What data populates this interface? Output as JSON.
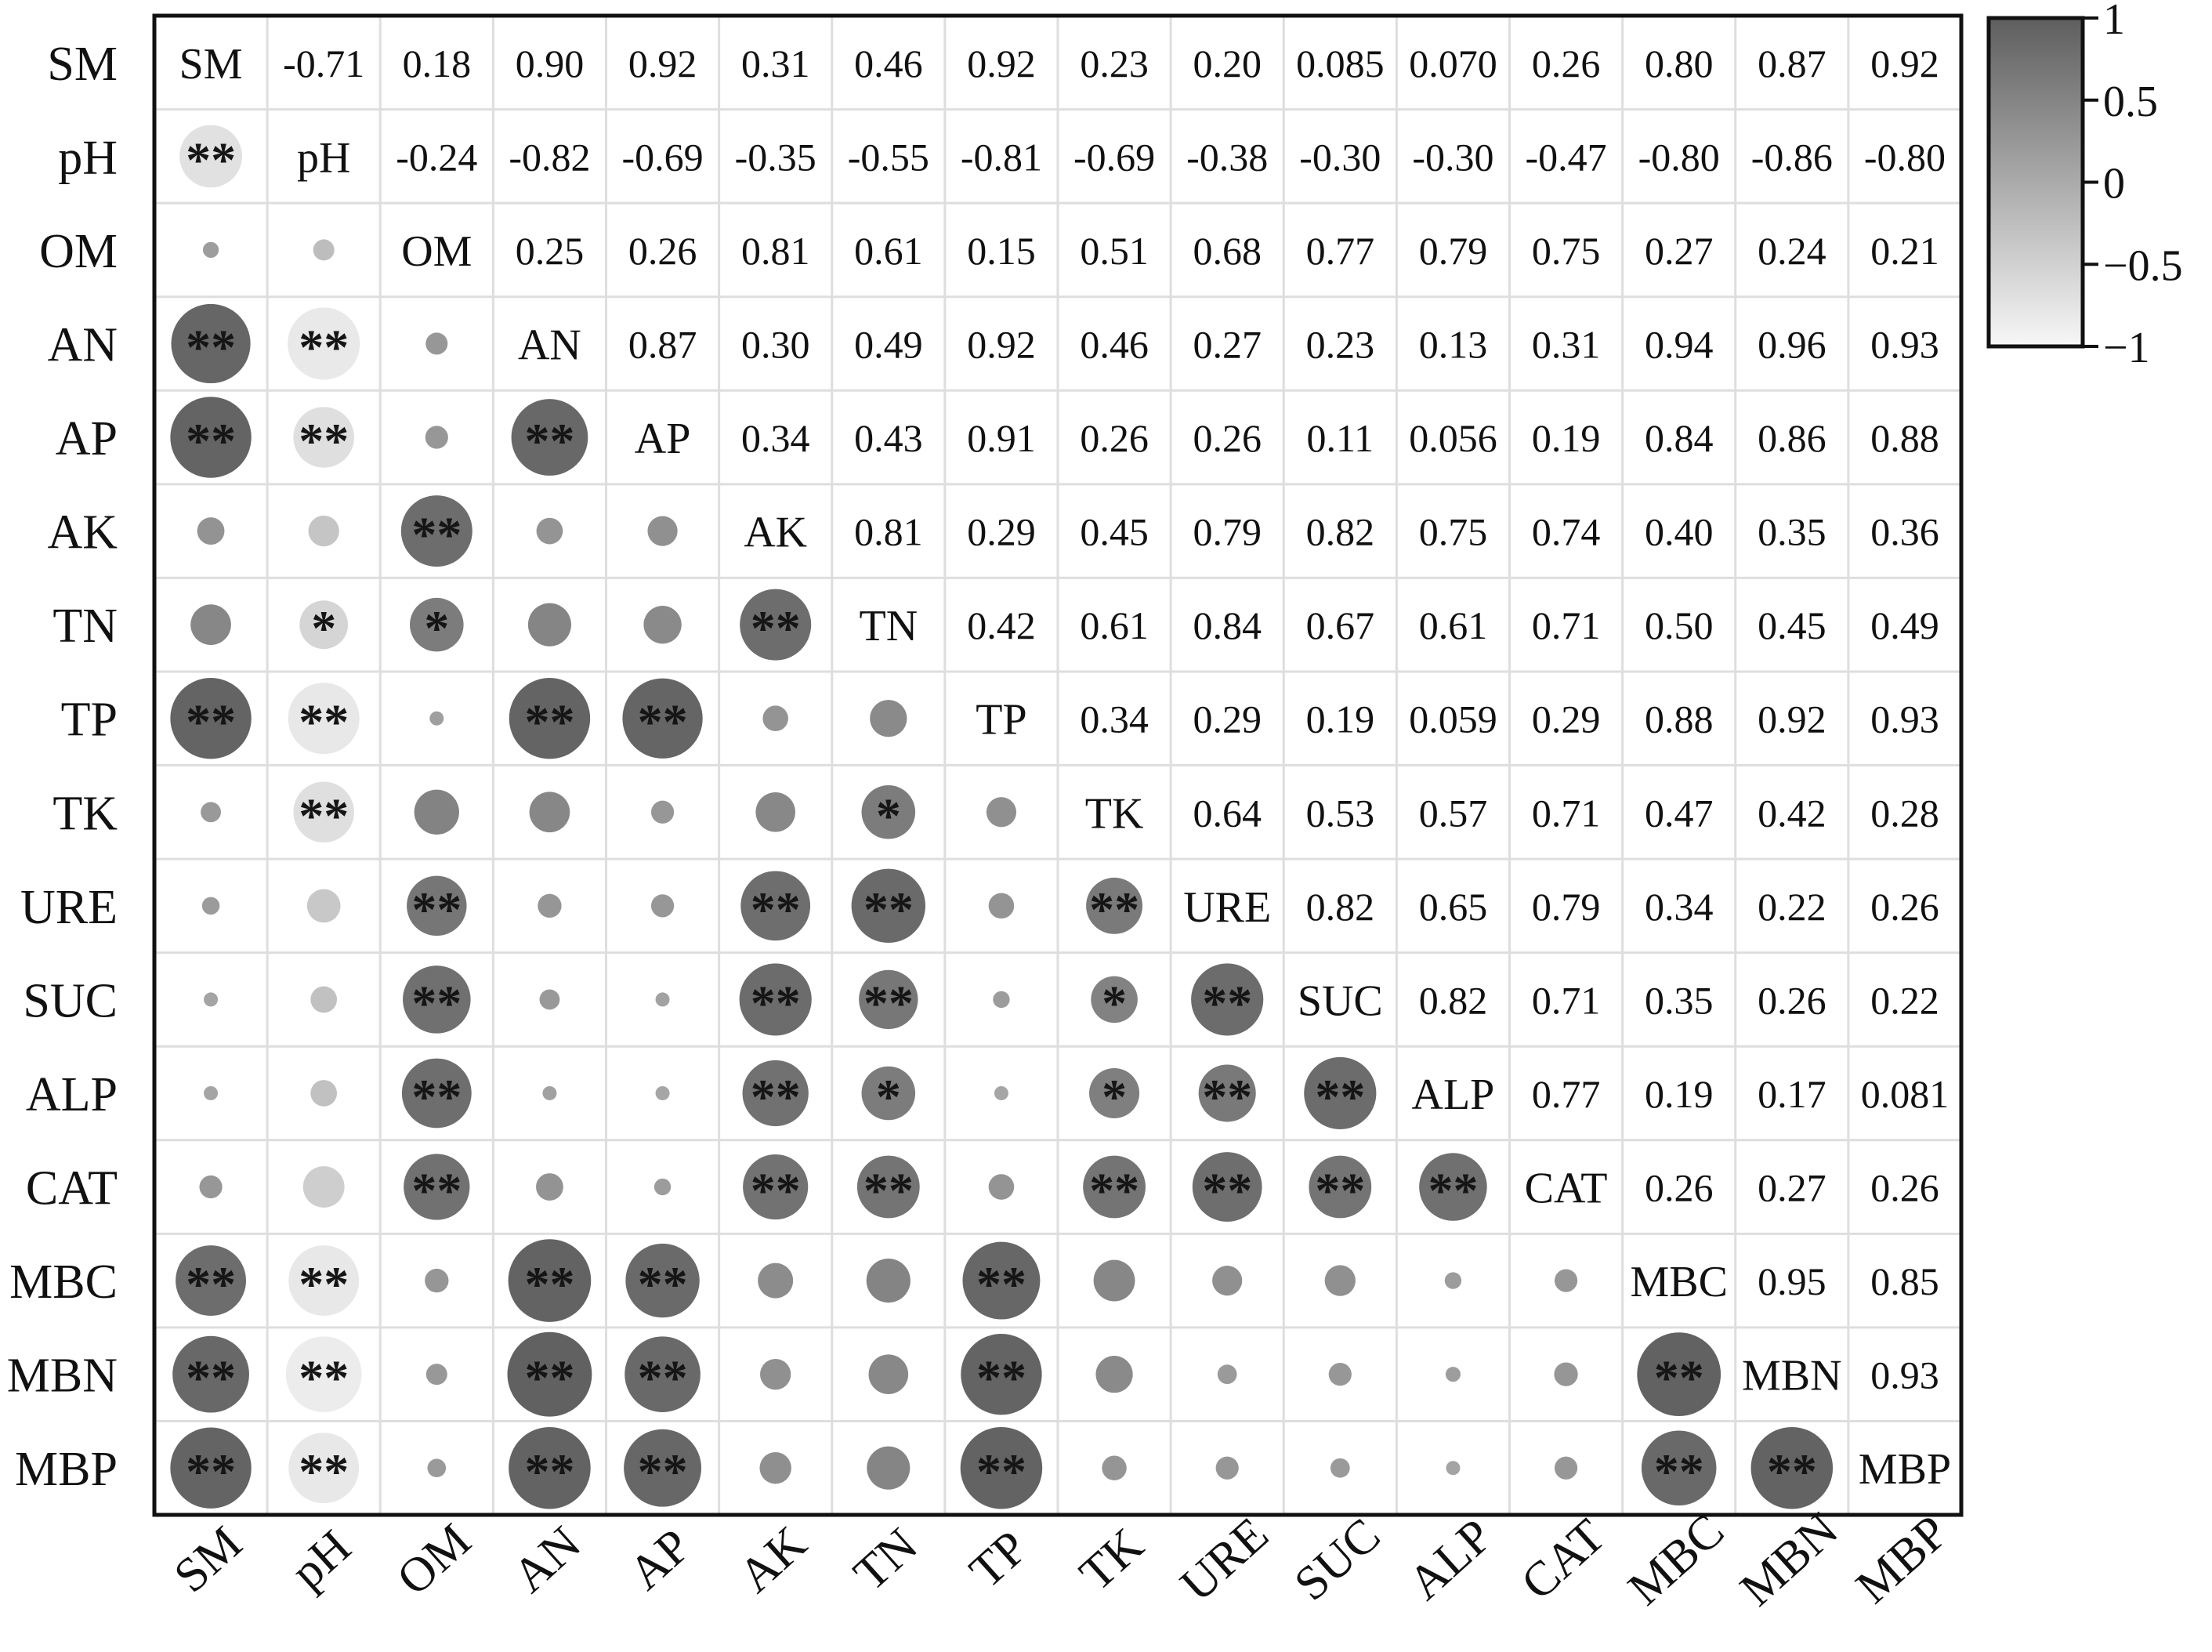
{
  "chart_data": {
    "type": "heatmap",
    "variables": [
      "SM",
      "pH",
      "OM",
      "AN",
      "AP",
      "AK",
      "TN",
      "TP",
      "TK",
      "URE",
      "SUC",
      "ALP",
      "CAT",
      "MBC",
      "MBN",
      "MBP"
    ],
    "upper_labels": [
      [
        "SM",
        "-0.71",
        "0.18",
        "0.90",
        "0.92",
        "0.31",
        "0.46",
        "0.92",
        "0.23",
        "0.20",
        "0.085",
        "0.070",
        "0.26",
        "0.80",
        "0.87",
        "0.92"
      ],
      [
        "",
        "pH",
        "-0.24",
        "-0.82",
        "-0.69",
        "-0.35",
        "-0.55",
        "-0.81",
        "-0.69",
        "-0.38",
        "-0.30",
        "-0.30",
        "-0.47",
        "-0.80",
        "-0.86",
        "-0.80"
      ],
      [
        "",
        "",
        "OM",
        "0.25",
        "0.26",
        "0.81",
        "0.61",
        "0.15",
        "0.51",
        "0.68",
        "0.77",
        "0.79",
        "0.75",
        "0.27",
        "0.24",
        "0.21"
      ],
      [
        "",
        "",
        "",
        "AN",
        "0.87",
        "0.30",
        "0.49",
        "0.92",
        "0.46",
        "0.27",
        "0.23",
        "0.13",
        "0.31",
        "0.94",
        "0.96",
        "0.93"
      ],
      [
        "",
        "",
        "",
        "",
        "AP",
        "0.34",
        "0.43",
        "0.91",
        "0.26",
        "0.26",
        "0.11",
        "0.056",
        "0.19",
        "0.84",
        "0.86",
        "0.88"
      ],
      [
        "",
        "",
        "",
        "",
        "",
        "AK",
        "0.81",
        "0.29",
        "0.45",
        "0.79",
        "0.82",
        "0.75",
        "0.74",
        "0.40",
        "0.35",
        "0.36"
      ],
      [
        "",
        "",
        "",
        "",
        "",
        "",
        "TN",
        "0.42",
        "0.61",
        "0.84",
        "0.67",
        "0.61",
        "0.71",
        "0.50",
        "0.45",
        "0.49"
      ],
      [
        "",
        "",
        "",
        "",
        "",
        "",
        "",
        "TP",
        "0.34",
        "0.29",
        "0.19",
        "0.059",
        "0.29",
        "0.88",
        "0.92",
        "0.93"
      ],
      [
        "",
        "",
        "",
        "",
        "",
        "",
        "",
        "",
        "TK",
        "0.64",
        "0.53",
        "0.57",
        "0.71",
        "0.47",
        "0.42",
        "0.28"
      ],
      [
        "",
        "",
        "",
        "",
        "",
        "",
        "",
        "",
        "",
        "URE",
        "0.82",
        "0.65",
        "0.79",
        "0.34",
        "0.22",
        "0.26"
      ],
      [
        "",
        "",
        "",
        "",
        "",
        "",
        "",
        "",
        "",
        "",
        "SUC",
        "0.82",
        "0.71",
        "0.35",
        "0.26",
        "0.22"
      ],
      [
        "",
        "",
        "",
        "",
        "",
        "",
        "",
        "",
        "",
        "",
        "",
        "ALP",
        "0.77",
        "0.19",
        "0.17",
        "0.081"
      ],
      [
        "",
        "",
        "",
        "",
        "",
        "",
        "",
        "",
        "",
        "",
        "",
        "",
        "CAT",
        "0.26",
        "0.27",
        "0.26"
      ],
      [
        "",
        "",
        "",
        "",
        "",
        "",
        "",
        "",
        "",
        "",
        "",
        "",
        "",
        "MBC",
        "0.95",
        "0.85"
      ],
      [
        "",
        "",
        "",
        "",
        "",
        "",
        "",
        "",
        "",
        "",
        "",
        "",
        "",
        "",
        "MBN",
        "0.93"
      ],
      [
        "",
        "",
        "",
        "",
        "",
        "",
        "",
        "",
        "",
        "",
        "",
        "",
        "",
        "",
        "",
        "MBP"
      ]
    ],
    "significance": [
      [
        "",
        "",
        "",
        "",
        "",
        "",
        "",
        "",
        "",
        "",
        "",
        "",
        "",
        "",
        "",
        ""
      ],
      [
        "**",
        "",
        "",
        "",
        "",
        "",
        "",
        "",
        "",
        "",
        "",
        "",
        "",
        "",
        "",
        ""
      ],
      [
        "",
        "",
        "",
        "",
        "",
        "",
        "",
        "",
        "",
        "",
        "",
        "",
        "",
        "",
        "",
        ""
      ],
      [
        "**",
        "**",
        "",
        "",
        "",
        "",
        "",
        "",
        "",
        "",
        "",
        "",
        "",
        "",
        "",
        ""
      ],
      [
        "**",
        "**",
        "",
        "**",
        "",
        "",
        "",
        "",
        "",
        "",
        "",
        "",
        "",
        "",
        "",
        ""
      ],
      [
        "",
        "",
        "**",
        "",
        "",
        "",
        "",
        "",
        "",
        "",
        "",
        "",
        "",
        "",
        "",
        ""
      ],
      [
        "",
        "*",
        "*",
        "",
        "",
        "**",
        "",
        "",
        "",
        "",
        "",
        "",
        "",
        "",
        "",
        ""
      ],
      [
        "**",
        "**",
        "",
        "**",
        "**",
        "",
        "",
        "",
        "",
        "",
        "",
        "",
        "",
        "",
        "",
        ""
      ],
      [
        "",
        "**",
        "",
        "",
        "",
        "",
        "*",
        "",
        "",
        "",
        "",
        "",
        "",
        "",
        "",
        ""
      ],
      [
        "",
        "",
        "**",
        "",
        "",
        "**",
        "**",
        "",
        "**",
        "",
        "",
        "",
        "",
        "",
        "",
        ""
      ],
      [
        "",
        "",
        "**",
        "",
        "",
        "**",
        "**",
        "",
        "*",
        "**",
        "",
        "",
        "",
        "",
        "",
        ""
      ],
      [
        "",
        "",
        "**",
        "",
        "",
        "**",
        "*",
        "",
        "*",
        "**",
        "**",
        "",
        "",
        "",
        "",
        ""
      ],
      [
        "",
        "",
        "**",
        "",
        "",
        "**",
        "**",
        "",
        "**",
        "**",
        "**",
        "**",
        "",
        "",
        "",
        ""
      ],
      [
        "**",
        "**",
        "",
        "**",
        "**",
        "",
        "",
        "**",
        "",
        "",
        "",
        "",
        "",
        "",
        "",
        ""
      ],
      [
        "**",
        "**",
        "",
        "**",
        "**",
        "",
        "",
        "**",
        "",
        "",
        "",
        "",
        "",
        "**",
        "",
        ""
      ],
      [
        "**",
        "**",
        "",
        "**",
        "**",
        "",
        "",
        "**",
        "",
        "",
        "",
        "",
        "",
        "**",
        "**",
        ""
      ]
    ],
    "colorbar": {
      "min": -1,
      "max": 1,
      "ticks": [
        "1",
        "0.5",
        "0",
        "−0.5",
        "−1"
      ],
      "color_low": "#f7f7f7",
      "color_high": "#5e5e5e"
    },
    "grid": true
  }
}
